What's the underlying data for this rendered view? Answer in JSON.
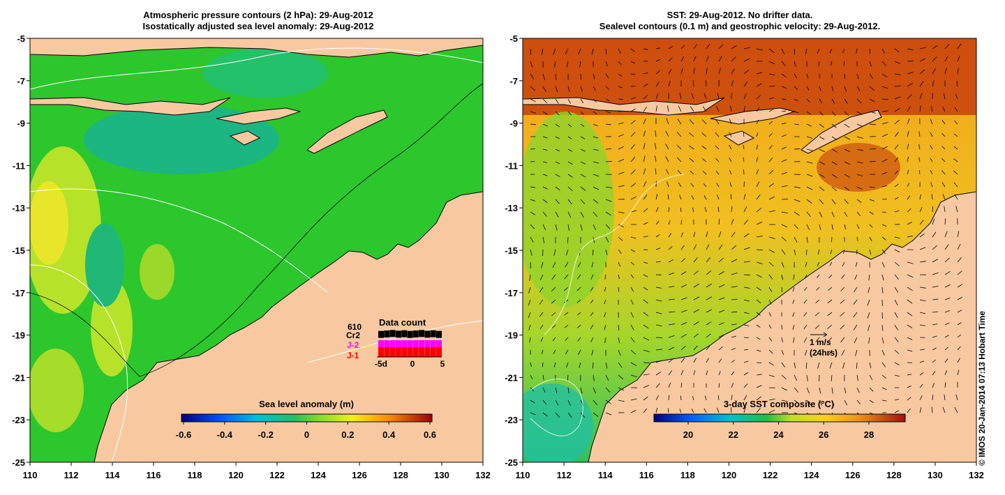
{
  "left_panel": {
    "title_line1": "Atmospheric pressure contours (2 hPa): 29-Aug-2012",
    "title_line2": "Isostatically adjusted sea level anomaly: 29-Aug-2012",
    "x_ticks": [
      "110",
      "112",
      "114",
      "116",
      "118",
      "120",
      "122",
      "124",
      "126",
      "128",
      "130",
      "132"
    ],
    "y_ticks": [
      "-5",
      "-7",
      "-9",
      "-11",
      "-13",
      "-15",
      "-17",
      "-19",
      "-21",
      "-23",
      "-25"
    ],
    "colorbar_label": "Sea level anomaly (m)",
    "colorbar_ticks": [
      "-0.6",
      "-0.4",
      "-0.2",
      "0",
      "0.2",
      "0.4",
      "0.6"
    ],
    "data_count": {
      "title": "Data count",
      "sources": [
        {
          "label": "610",
          "color": "#000000"
        },
        {
          "label": "Cr2",
          "color": "#000000"
        },
        {
          "label": "J-2",
          "color": "#ff00ff"
        },
        {
          "label": "J-1",
          "color": "#ff0000"
        }
      ],
      "axis_labels": [
        "-5d",
        "0",
        "5"
      ]
    }
  },
  "right_panel": {
    "title_line1": "SST: 29-Aug-2012. No drifter data.",
    "title_line2": "Sealevel contours (0.1 m) and geostrophic velocity: 29-Aug-2012.",
    "x_ticks": [
      "110",
      "112",
      "114",
      "116",
      "118",
      "120",
      "122",
      "124",
      "126",
      "128",
      "130",
      "132"
    ],
    "y_ticks": [
      "-5",
      "-7",
      "-9",
      "-11",
      "-13",
      "-15",
      "-17",
      "-19",
      "-21",
      "-23",
      "-25"
    ],
    "colorbar_label": "3-day SST composite (°C)",
    "colorbar_ticks": [
      "20",
      "22",
      "24",
      "26",
      "28"
    ],
    "velocity_scale_label1": "1 m/s",
    "velocity_scale_label2": "(24hrs)"
  },
  "credit": "© IMOS 20-Jan-2014 07:13 Hobart Time",
  "colors": {
    "land": "#f8c9a1",
    "sla_ocean": "#2cc72c",
    "sst_ocean": "#f2a21a",
    "sst_warm": "#c8400c"
  }
}
